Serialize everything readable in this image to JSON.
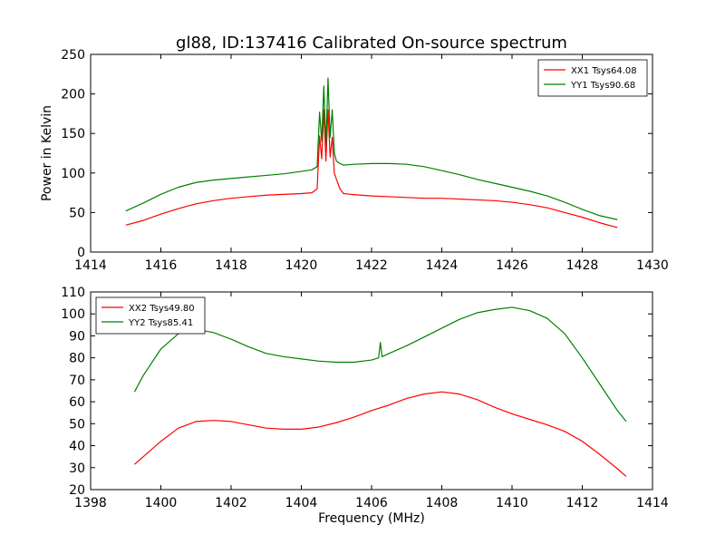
{
  "chart_data": [
    {
      "type": "line",
      "title": "gl88, ID:137416 Calibrated On-source spectrum",
      "xlabel": "",
      "ylabel": "Power in Kelvin",
      "xlim": [
        1414,
        1430
      ],
      "ylim": [
        0,
        250
      ],
      "xticks": [
        1414,
        1416,
        1418,
        1420,
        1422,
        1424,
        1426,
        1428,
        1430
      ],
      "yticks": [
        0,
        50,
        100,
        150,
        200,
        250
      ],
      "grid": false,
      "legend_position": "top-right",
      "series": [
        {
          "name": "XX1 Tsys64.08",
          "color": "#ff0000",
          "x": [
            1415.0,
            1415.5,
            1416.0,
            1416.5,
            1417.0,
            1417.5,
            1418.0,
            1418.5,
            1419.0,
            1419.5,
            1420.0,
            1420.3,
            1420.45,
            1420.52,
            1420.58,
            1420.64,
            1420.7,
            1420.76,
            1420.82,
            1420.88,
            1420.94,
            1421.0,
            1421.1,
            1421.2,
            1421.4,
            1422.0,
            1422.5,
            1423.0,
            1423.5,
            1424.0,
            1424.5,
            1425.0,
            1425.5,
            1426.0,
            1426.5,
            1427.0,
            1427.5,
            1428.0,
            1428.5,
            1429.0
          ],
          "y": [
            34,
            40,
            48,
            55,
            61,
            65,
            68,
            70,
            72,
            73,
            74,
            75,
            80,
            147,
            118,
            180,
            115,
            180,
            120,
            145,
            100,
            92,
            80,
            74,
            73,
            71,
            70,
            69,
            68,
            68,
            67,
            66,
            65,
            63,
            60,
            56,
            50,
            44,
            37,
            31
          ]
        },
        {
          "name": "YY1 Tsys90.68",
          "color": "#008000",
          "x": [
            1415.0,
            1415.5,
            1416.0,
            1416.5,
            1417.0,
            1417.5,
            1418.0,
            1418.5,
            1419.0,
            1419.5,
            1420.0,
            1420.3,
            1420.45,
            1420.52,
            1420.58,
            1420.64,
            1420.7,
            1420.76,
            1420.82,
            1420.88,
            1420.94,
            1421.0,
            1421.1,
            1421.2,
            1421.5,
            1422.0,
            1422.5,
            1423.0,
            1423.5,
            1424.0,
            1424.5,
            1425.0,
            1425.5,
            1426.0,
            1426.5,
            1427.0,
            1427.5,
            1428.0,
            1428.5,
            1429.0
          ],
          "y": [
            52,
            62,
            73,
            82,
            88,
            91,
            93,
            95,
            97,
            99,
            102,
            104,
            108,
            177,
            140,
            210,
            135,
            220,
            145,
            180,
            125,
            115,
            112,
            110,
            111,
            112,
            112,
            111,
            108,
            103,
            98,
            92,
            87,
            82,
            77,
            71,
            63,
            54,
            46,
            41
          ]
        }
      ]
    },
    {
      "type": "line",
      "title": "",
      "xlabel": "Frequency (MHz)",
      "ylabel": "",
      "xlim": [
        1398,
        1414
      ],
      "ylim": [
        20,
        110
      ],
      "xticks": [
        1398,
        1400,
        1402,
        1404,
        1406,
        1408,
        1410,
        1412,
        1414
      ],
      "yticks": [
        20,
        30,
        40,
        50,
        60,
        70,
        80,
        90,
        100,
        110
      ],
      "grid": false,
      "legend_position": "top-left",
      "series": [
        {
          "name": "XX2 Tsys49.80",
          "color": "#ff0000",
          "x": [
            1399.25,
            1399.5,
            1400.0,
            1400.5,
            1401.0,
            1401.5,
            1402.0,
            1402.5,
            1403.0,
            1403.5,
            1404.0,
            1404.5,
            1405.0,
            1405.5,
            1406.0,
            1406.5,
            1407.0,
            1407.5,
            1408.0,
            1408.5,
            1409.0,
            1409.5,
            1410.0,
            1410.5,
            1411.0,
            1411.5,
            1412.0,
            1412.5,
            1413.0,
            1413.25
          ],
          "y": [
            31.5,
            35,
            42,
            48,
            51,
            51.5,
            51,
            49.5,
            48,
            47.5,
            47.5,
            48.5,
            50.5,
            53,
            56,
            58.5,
            61.5,
            63.5,
            64.5,
            63.5,
            61,
            57.5,
            54.5,
            52,
            49.5,
            46.5,
            42,
            36,
            29.5,
            26
          ]
        },
        {
          "name": "YY2 Tsys85.41",
          "color": "#008000",
          "x": [
            1399.25,
            1399.5,
            1400.0,
            1400.5,
            1401.0,
            1401.5,
            1402.0,
            1402.5,
            1403.0,
            1403.5,
            1404.0,
            1404.5,
            1405.0,
            1405.5,
            1406.0,
            1406.2,
            1406.25,
            1406.3,
            1406.5,
            1407.0,
            1407.5,
            1408.0,
            1408.5,
            1409.0,
            1409.5,
            1410.0,
            1410.5,
            1411.0,
            1411.5,
            1412.0,
            1412.5,
            1413.0,
            1413.25
          ],
          "y": [
            64.5,
            72,
            84,
            91,
            93,
            91.5,
            88.5,
            85,
            82,
            80.5,
            79.5,
            78.5,
            78,
            78,
            79,
            80,
            87,
            80.5,
            82,
            85.5,
            89.5,
            93.5,
            97.5,
            100.5,
            102,
            103,
            101.5,
            98,
            91,
            80,
            68,
            56,
            51
          ]
        }
      ]
    }
  ]
}
